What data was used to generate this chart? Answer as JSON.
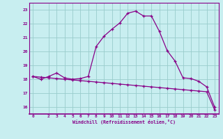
{
  "xlabel": "Windchill (Refroidissement éolien,°C)",
  "background_color": "#c8eef0",
  "line_color": "#880088",
  "grid_color": "#99cccc",
  "xlim": [
    -0.5,
    23.5
  ],
  "ylim": [
    15.5,
    23.5
  ],
  "yticks": [
    16,
    17,
    18,
    19,
    20,
    21,
    22,
    23
  ],
  "xticks": [
    0,
    2,
    3,
    4,
    5,
    6,
    7,
    8,
    9,
    10,
    11,
    12,
    13,
    14,
    15,
    16,
    17,
    18,
    19,
    20,
    21,
    22,
    23
  ],
  "curve1_x": [
    0,
    1,
    2,
    3,
    4,
    5,
    6,
    7,
    8,
    9,
    10,
    11,
    12,
    13,
    14,
    15,
    16,
    17,
    18,
    19,
    20,
    21,
    22,
    23
  ],
  "curve1_y": [
    18.2,
    18.0,
    18.2,
    18.45,
    18.1,
    18.0,
    18.05,
    18.2,
    20.35,
    21.1,
    21.6,
    22.05,
    22.75,
    22.9,
    22.55,
    22.55,
    21.45,
    20.05,
    19.3,
    18.1,
    18.05,
    17.85,
    17.45,
    16.0
  ],
  "curve2_x": [
    0,
    1,
    2,
    3,
    4,
    5,
    6,
    7,
    8,
    9,
    10,
    11,
    12,
    13,
    14,
    15,
    16,
    17,
    18,
    19,
    20,
    21,
    22,
    23
  ],
  "curve2_y": [
    18.2,
    18.15,
    18.1,
    18.05,
    18.0,
    17.95,
    17.9,
    17.85,
    17.8,
    17.75,
    17.7,
    17.65,
    17.6,
    17.55,
    17.5,
    17.45,
    17.4,
    17.35,
    17.3,
    17.25,
    17.2,
    17.15,
    17.1,
    15.8
  ]
}
